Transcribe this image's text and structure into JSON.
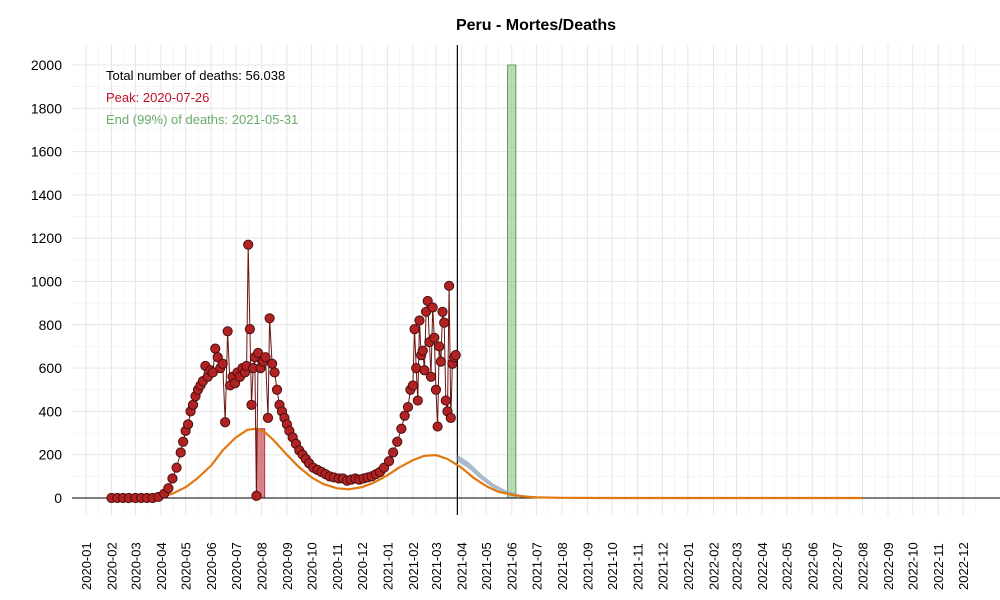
{
  "chart_data": {
    "type": "scatter",
    "title": "Peru - Mortes/Deaths",
    "xlabel": "",
    "ylabel": "",
    "ylim": [
      0,
      2000
    ],
    "yticks": [
      0,
      200,
      400,
      600,
      800,
      1000,
      1200,
      1400,
      1600,
      1800,
      2000
    ],
    "x_range": [
      "2019-12-15",
      "2023-01-15"
    ],
    "xtick_labels": [
      "2020-01",
      "2020-02",
      "2020-03",
      "2020-04",
      "2020-05",
      "2020-06",
      "2020-07",
      "2020-08",
      "2020-09",
      "2020-10",
      "2020-11",
      "2020-12",
      "2021-01",
      "2021-02",
      "2021-03",
      "2021-04",
      "2021-05",
      "2021-06",
      "2021-07",
      "2021-08",
      "2021-09",
      "2021-10",
      "2021-11",
      "2021-12",
      "2022-01",
      "2022-02",
      "2022-03",
      "2022-04",
      "2022-05",
      "2022-06",
      "2022-07",
      "2022-08",
      "2022-09",
      "2022-10",
      "2022-11",
      "2022-12"
    ],
    "grid": true,
    "annotations": {
      "total": "Total number of deaths: 56.038",
      "peak": "Peak: 2020-07-26",
      "end": "End (99%) of deaths: 2021-05-31"
    },
    "colors": {
      "points": "#b22222",
      "points_stroke": "#4a0f0f",
      "fit": "#e0780f",
      "forecast": "#8fa3b8",
      "peak_band": "#c0303c",
      "end_band": "#7fbf7f",
      "peak_text": "#c0102a",
      "end_text": "#6aaa6a"
    },
    "current_date": "2021-03-27",
    "peak_band": [
      "2020-07-26",
      "2020-08-05"
    ],
    "end_band": [
      "2021-05-27",
      "2021-06-06"
    ],
    "series": [
      {
        "kind": "daily_deaths",
        "points": [
          [
            "2020-02-01",
            0
          ],
          [
            "2020-02-08",
            0
          ],
          [
            "2020-02-15",
            0
          ],
          [
            "2020-02-22",
            0
          ],
          [
            "2020-03-01",
            0
          ],
          [
            "2020-03-08",
            0
          ],
          [
            "2020-03-15",
            0
          ],
          [
            "2020-03-22",
            0
          ],
          [
            "2020-03-29",
            5
          ],
          [
            "2020-04-05",
            20
          ],
          [
            "2020-04-10",
            45
          ],
          [
            "2020-04-15",
            90
          ],
          [
            "2020-04-20",
            140
          ],
          [
            "2020-04-25",
            210
          ],
          [
            "2020-04-28",
            260
          ],
          [
            "2020-05-01",
            310
          ],
          [
            "2020-05-04",
            340
          ],
          [
            "2020-05-07",
            400
          ],
          [
            "2020-05-10",
            430
          ],
          [
            "2020-05-13",
            470
          ],
          [
            "2020-05-16",
            500
          ],
          [
            "2020-05-19",
            520
          ],
          [
            "2020-05-22",
            540
          ],
          [
            "2020-05-25",
            610
          ],
          [
            "2020-05-28",
            560
          ],
          [
            "2020-05-31",
            590
          ],
          [
            "2020-06-03",
            580
          ],
          [
            "2020-06-06",
            690
          ],
          [
            "2020-06-09",
            650
          ],
          [
            "2020-06-12",
            600
          ],
          [
            "2020-06-15",
            620
          ],
          [
            "2020-06-18",
            350
          ],
          [
            "2020-06-21",
            770
          ],
          [
            "2020-06-24",
            520
          ],
          [
            "2020-06-27",
            560
          ],
          [
            "2020-06-30",
            530
          ],
          [
            "2020-07-03",
            580
          ],
          [
            "2020-07-06",
            560
          ],
          [
            "2020-07-09",
            600
          ],
          [
            "2020-07-12",
            580
          ],
          [
            "2020-07-14",
            610
          ],
          [
            "2020-07-16",
            1170
          ],
          [
            "2020-07-18",
            780
          ],
          [
            "2020-07-20",
            430
          ],
          [
            "2020-07-22",
            600
          ],
          [
            "2020-07-24",
            650
          ],
          [
            "2020-07-26",
            10
          ],
          [
            "2020-07-28",
            670
          ],
          [
            "2020-07-31",
            600
          ],
          [
            "2020-08-03",
            630
          ],
          [
            "2020-08-06",
            650
          ],
          [
            "2020-08-09",
            370
          ],
          [
            "2020-08-11",
            830
          ],
          [
            "2020-08-14",
            620
          ],
          [
            "2020-08-17",
            580
          ],
          [
            "2020-08-20",
            500
          ],
          [
            "2020-08-23",
            430
          ],
          [
            "2020-08-26",
            400
          ],
          [
            "2020-08-29",
            370
          ],
          [
            "2020-09-01",
            340
          ],
          [
            "2020-09-04",
            310
          ],
          [
            "2020-09-08",
            280
          ],
          [
            "2020-09-12",
            250
          ],
          [
            "2020-09-16",
            220
          ],
          [
            "2020-09-20",
            200
          ],
          [
            "2020-09-24",
            180
          ],
          [
            "2020-09-28",
            160
          ],
          [
            "2020-10-03",
            140
          ],
          [
            "2020-10-08",
            130
          ],
          [
            "2020-10-13",
            120
          ],
          [
            "2020-10-18",
            110
          ],
          [
            "2020-10-23",
            100
          ],
          [
            "2020-10-28",
            95
          ],
          [
            "2020-11-03",
            90
          ],
          [
            "2020-11-08",
            90
          ],
          [
            "2020-11-13",
            80
          ],
          [
            "2020-11-18",
            85
          ],
          [
            "2020-11-23",
            90
          ],
          [
            "2020-11-28",
            85
          ],
          [
            "2020-12-03",
            90
          ],
          [
            "2020-12-08",
            95
          ],
          [
            "2020-12-13",
            100
          ],
          [
            "2020-12-18",
            110
          ],
          [
            "2020-12-23",
            120
          ],
          [
            "2020-12-28",
            140
          ],
          [
            "2021-01-03",
            170
          ],
          [
            "2021-01-08",
            210
          ],
          [
            "2021-01-13",
            260
          ],
          [
            "2021-01-18",
            320
          ],
          [
            "2021-01-22",
            380
          ],
          [
            "2021-01-26",
            420
          ],
          [
            "2021-01-29",
            500
          ],
          [
            "2021-02-01",
            520
          ],
          [
            "2021-02-03",
            780
          ],
          [
            "2021-02-05",
            600
          ],
          [
            "2021-02-07",
            450
          ],
          [
            "2021-02-09",
            820
          ],
          [
            "2021-02-11",
            660
          ],
          [
            "2021-02-13",
            680
          ],
          [
            "2021-02-15",
            590
          ],
          [
            "2021-02-17",
            860
          ],
          [
            "2021-02-19",
            910
          ],
          [
            "2021-02-21",
            720
          ],
          [
            "2021-02-23",
            560
          ],
          [
            "2021-02-25",
            880
          ],
          [
            "2021-02-27",
            740
          ],
          [
            "2021-03-01",
            500
          ],
          [
            "2021-03-03",
            330
          ],
          [
            "2021-03-05",
            700
          ],
          [
            "2021-03-07",
            630
          ],
          [
            "2021-03-09",
            860
          ],
          [
            "2021-03-11",
            810
          ],
          [
            "2021-03-13",
            450
          ],
          [
            "2021-03-15",
            400
          ],
          [
            "2021-03-17",
            980
          ],
          [
            "2021-03-19",
            370
          ],
          [
            "2021-03-21",
            620
          ],
          [
            "2021-03-23",
            650
          ],
          [
            "2021-03-25",
            660
          ]
        ]
      },
      {
        "kind": "fit_curve",
        "points": [
          [
            "2020-02-01",
            0
          ],
          [
            "2020-03-01",
            1
          ],
          [
            "2020-03-20",
            2
          ],
          [
            "2020-04-01",
            6
          ],
          [
            "2020-04-15",
            20
          ],
          [
            "2020-05-01",
            50
          ],
          [
            "2020-05-15",
            90
          ],
          [
            "2020-06-01",
            150
          ],
          [
            "2020-06-15",
            220
          ],
          [
            "2020-07-01",
            280
          ],
          [
            "2020-07-15",
            315
          ],
          [
            "2020-07-26",
            320
          ],
          [
            "2020-08-05",
            305
          ],
          [
            "2020-08-15",
            270
          ],
          [
            "2020-09-01",
            200
          ],
          [
            "2020-09-15",
            145
          ],
          [
            "2020-10-01",
            95
          ],
          [
            "2020-10-15",
            65
          ],
          [
            "2020-11-01",
            45
          ],
          [
            "2020-11-15",
            40
          ],
          [
            "2020-12-01",
            50
          ],
          [
            "2020-12-15",
            70
          ],
          [
            "2021-01-01",
            105
          ],
          [
            "2021-01-15",
            140
          ],
          [
            "2021-02-01",
            175
          ],
          [
            "2021-02-15",
            195
          ],
          [
            "2021-03-01",
            198
          ],
          [
            "2021-03-15",
            180
          ],
          [
            "2021-04-01",
            140
          ],
          [
            "2021-04-15",
            95
          ],
          [
            "2021-05-01",
            55
          ],
          [
            "2021-05-15",
            30
          ],
          [
            "2021-06-01",
            15
          ],
          [
            "2021-06-15",
            7
          ],
          [
            "2021-07-01",
            3
          ],
          [
            "2021-08-01",
            1
          ],
          [
            "2021-10-01",
            0
          ],
          [
            "2022-08-01",
            0
          ]
        ]
      },
      {
        "kind": "forecast_band",
        "upper": [
          [
            "2021-03-27",
            200
          ],
          [
            "2021-04-10",
            165
          ],
          [
            "2021-04-25",
            110
          ],
          [
            "2021-05-10",
            65
          ],
          [
            "2021-05-25",
            35
          ],
          [
            "2021-06-10",
            16
          ],
          [
            "2021-07-01",
            5
          ],
          [
            "2021-08-01",
            1
          ]
        ],
        "lower": [
          [
            "2021-03-27",
            170
          ],
          [
            "2021-04-10",
            135
          ],
          [
            "2021-04-25",
            85
          ],
          [
            "2021-05-10",
            45
          ],
          [
            "2021-05-25",
            22
          ],
          [
            "2021-06-10",
            9
          ],
          [
            "2021-07-01",
            2
          ],
          [
            "2021-08-01",
            0
          ]
        ]
      }
    ]
  }
}
